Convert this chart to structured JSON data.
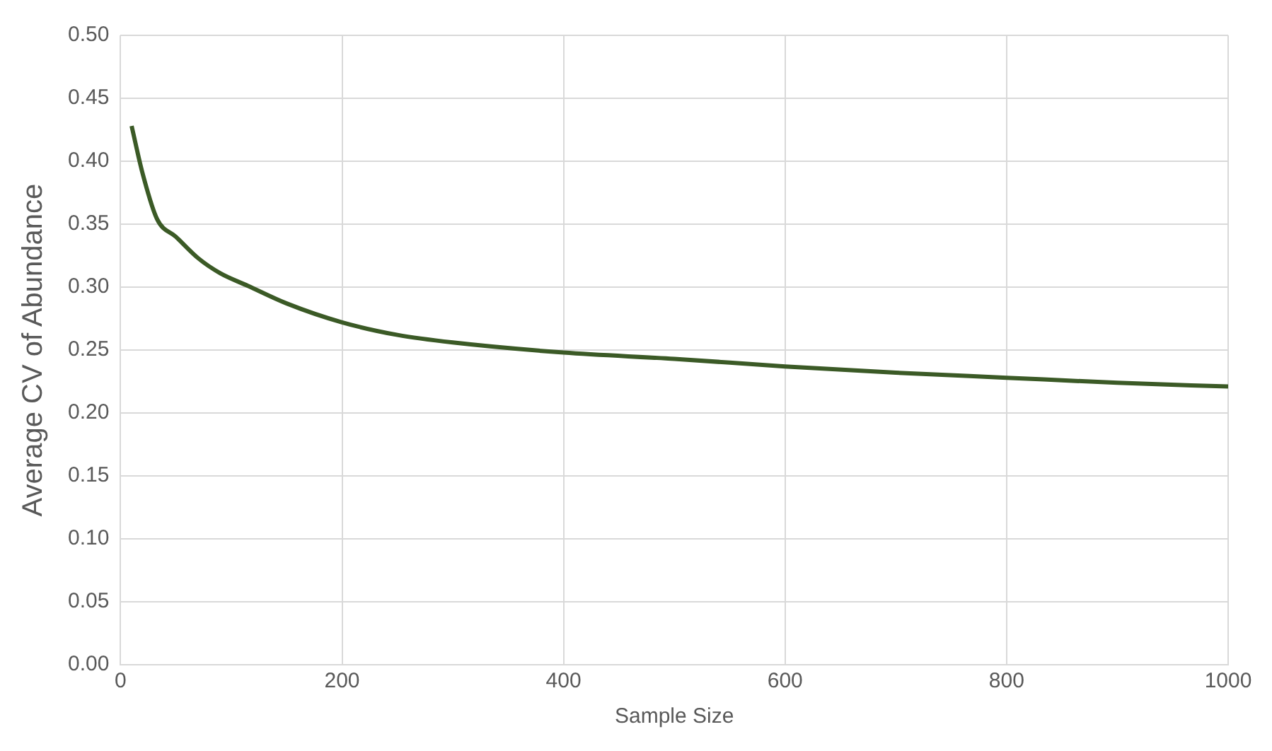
{
  "chart_data": {
    "type": "line",
    "xlabel": "Sample Size",
    "ylabel": "Average CV of Abundance",
    "x": [
      10,
      20,
      33,
      50,
      70,
      90,
      115,
      150,
      200,
      250,
      300,
      400,
      500,
      600,
      700,
      800,
      900,
      1000
    ],
    "series": [
      {
        "color": "#3b5a26",
        "values": [
          0.428,
          0.39,
          0.354,
          0.34,
          0.323,
          0.311,
          0.301,
          0.287,
          0.272,
          0.262,
          0.256,
          0.248,
          0.243,
          0.237,
          0.232,
          0.228,
          0.224,
          0.221
        ]
      }
    ],
    "xlim": [
      0,
      1000
    ],
    "xticks": [
      0,
      200,
      400,
      600,
      800,
      1000
    ],
    "ylim": [
      0,
      0.5
    ],
    "yticks": [
      {
        "value": 0,
        "label": "0.00"
      },
      {
        "value": 0.05,
        "label": "0.05"
      },
      {
        "value": 0.1,
        "label": "0.10"
      },
      {
        "value": 0.15,
        "label": "0.15"
      },
      {
        "value": 0.2,
        "label": "0.20"
      },
      {
        "value": 0.25,
        "label": "0.25"
      },
      {
        "value": 0.3,
        "label": "0.30"
      },
      {
        "value": 0.35,
        "label": "0.35"
      },
      {
        "value": 0.4,
        "label": "0.40"
      },
      {
        "value": 0.45,
        "label": "0.45"
      },
      {
        "value": 0.5,
        "label": "0.50"
      }
    ],
    "grid": true,
    "legend": false
  }
}
